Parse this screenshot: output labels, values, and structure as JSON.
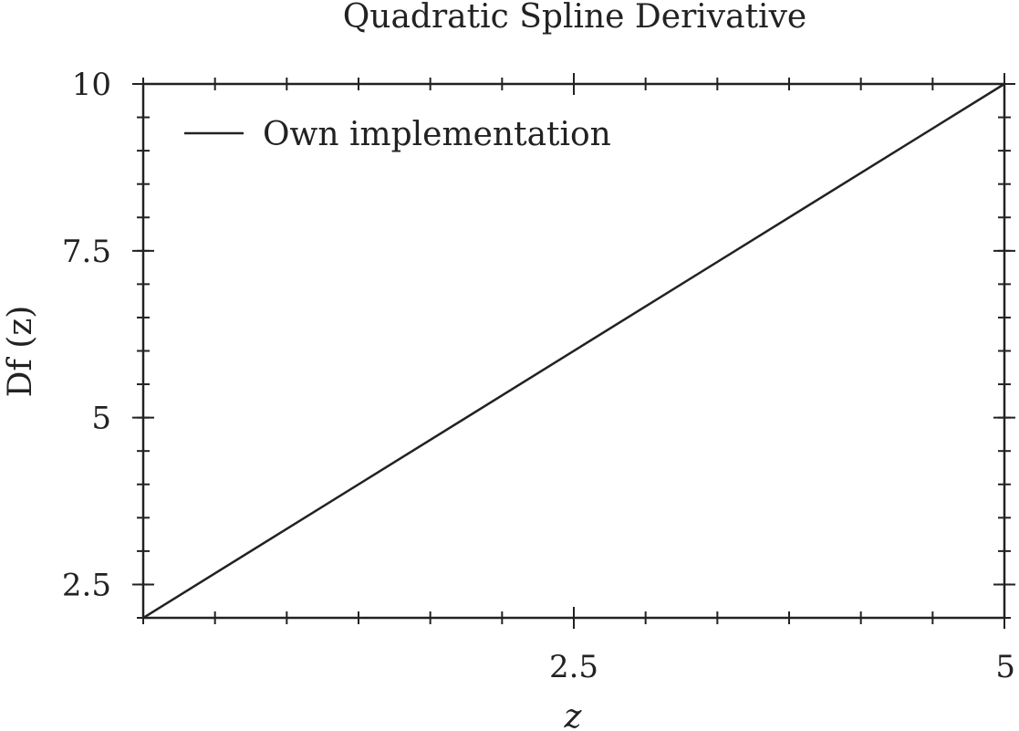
{
  "chart_data": {
    "type": "line",
    "title": "Quadratic Spline Derivative",
    "xlabel": "z",
    "ylabel": "Df (z)",
    "xlim": [
      0,
      5
    ],
    "ylim": [
      2,
      10
    ],
    "x_ticks": [
      {
        "value": 2.5,
        "label": "2.5"
      },
      {
        "value": 5,
        "label": "5"
      }
    ],
    "y_ticks": [
      {
        "value": 2.5,
        "label": "2.5"
      },
      {
        "value": 5,
        "label": "5"
      },
      {
        "value": 7.5,
        "label": "7.5"
      },
      {
        "value": 10,
        "label": "10"
      }
    ],
    "x_minor_step": 0.41667,
    "y_minor_step": 0.5,
    "grid": false,
    "legend_position": "top-left",
    "series": [
      {
        "name": "Own implementation",
        "color": "#222222",
        "x": [
          0,
          5
        ],
        "y": [
          2,
          10
        ]
      }
    ]
  }
}
